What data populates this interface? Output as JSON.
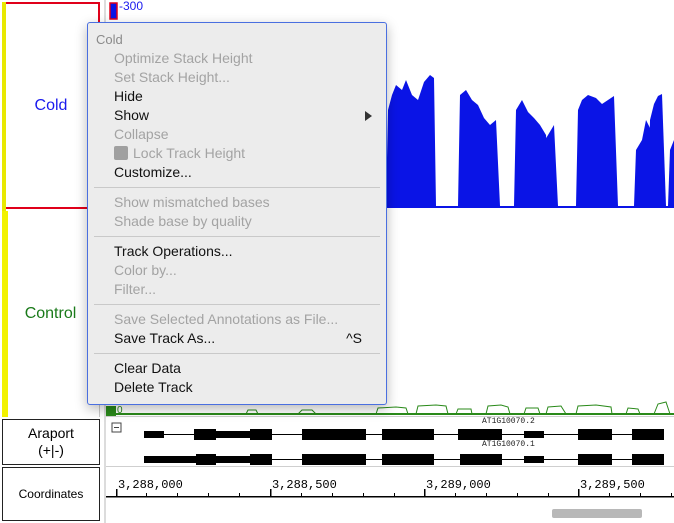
{
  "tracks": {
    "cold": {
      "name": "Cold",
      "color": "#1a1aee",
      "scale_label": "-300"
    },
    "control": {
      "name": "Control",
      "color": "#1a7a1a",
      "scale_label": "0"
    },
    "annotation": {
      "name_line1": "Araport",
      "name_line2": "(+|-)",
      "gene1": "AT1G10070.2",
      "gene2": "AT1G10070.1"
    },
    "coordinates": {
      "name": "Coordinates",
      "ticks": [
        "3,288,000",
        "3,288,500",
        "3,289,000",
        "3,289,500"
      ]
    }
  },
  "menu": {
    "header": "Cold",
    "items": [
      {
        "label": "Optimize Stack Height",
        "enabled": false
      },
      {
        "label": "Set Stack Height...",
        "enabled": false
      },
      {
        "label": "Hide",
        "enabled": true
      },
      {
        "label": "Show",
        "enabled": true,
        "submenu": true
      },
      {
        "label": "Collapse",
        "enabled": false
      },
      {
        "label": "Lock Track Height",
        "enabled": false,
        "checkbox": true
      },
      {
        "label": "Customize...",
        "enabled": true
      },
      {
        "label": "Show mismatched bases",
        "enabled": false
      },
      {
        "label": "Shade base by quality",
        "enabled": false
      },
      {
        "label": "Track Operations...",
        "enabled": true
      },
      {
        "label": "Color by...",
        "enabled": false
      },
      {
        "label": "Filter...",
        "enabled": false
      },
      {
        "label": "Save Selected Annotations as File...",
        "enabled": false
      },
      {
        "label": "Save Track As...",
        "enabled": true,
        "shortcut": "^S"
      },
      {
        "label": "Clear Data",
        "enabled": true
      },
      {
        "label": "Delete Track",
        "enabled": true
      }
    ]
  },
  "colors": {
    "cold_bars": "#0a14e6",
    "control_bars": "#2a8a1a",
    "selection_border": "#e0001a",
    "menu_border": "#4a6fe0",
    "scrollbar": "#b8b8b8"
  }
}
